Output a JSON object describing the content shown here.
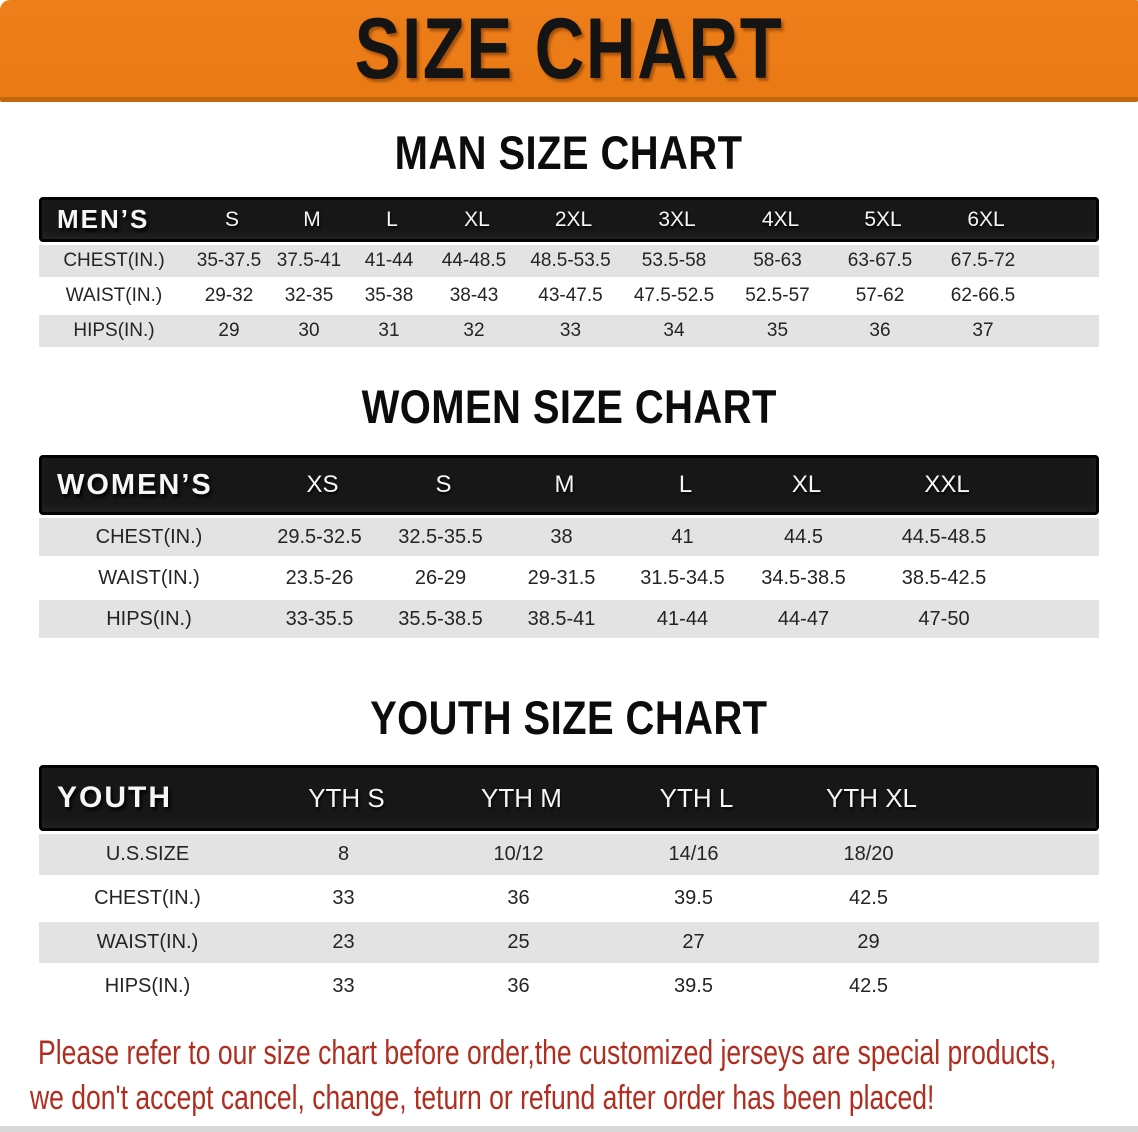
{
  "banner": {
    "title": "SIZE CHART"
  },
  "colors": {
    "banner_bg": "#ee7e1a",
    "banner_edge": "#c4660d",
    "header_bg": "#171717",
    "stripe_bg": "#e3e3e3",
    "note_red": "#b02e20"
  },
  "men": {
    "heading": "MAN SIZE CHART",
    "header_label": "MEN’S",
    "sizes": [
      "S",
      "M",
      "L",
      "XL",
      "2XL",
      "3XL",
      "4XL",
      "5XL",
      "6XL"
    ],
    "rows": [
      {
        "label": "CHEST(IN.)",
        "values": [
          "35-37.5",
          "37.5-41",
          "41-44",
          "44-48.5",
          "48.5-53.5",
          "53.5-58",
          "58-63",
          "63-67.5",
          "67.5-72"
        ]
      },
      {
        "label": "WAIST(IN.)",
        "values": [
          "29-32",
          "32-35",
          "35-38",
          "38-43",
          "43-47.5",
          "47.5-52.5",
          "52.5-57",
          "57-62",
          "62-66.5"
        ]
      },
      {
        "label": "HIPS(IN.)",
        "values": [
          "29",
          "30",
          "31",
          "32",
          "33",
          "34",
          "35",
          "36",
          "37"
        ]
      }
    ]
  },
  "women": {
    "heading": "WOMEN SIZE CHART",
    "header_label": "WOMEN’S",
    "sizes": [
      "XS",
      "S",
      "M",
      "L",
      "XL",
      "XXL"
    ],
    "rows": [
      {
        "label": "CHEST(IN.)",
        "values": [
          "29.5-32.5",
          "32.5-35.5",
          "38",
          "41",
          "44.5",
          "44.5-48.5"
        ]
      },
      {
        "label": "WAIST(IN.)",
        "values": [
          "23.5-26",
          "26-29",
          "29-31.5",
          "31.5-34.5",
          "34.5-38.5",
          "38.5-42.5"
        ]
      },
      {
        "label": "HIPS(IN.)",
        "values": [
          "33-35.5",
          "35.5-38.5",
          "38.5-41",
          "41-44",
          "44-47",
          "47-50"
        ]
      }
    ]
  },
  "youth": {
    "heading": "YOUTH SIZE CHART",
    "header_label": "YOUTH",
    "sizes": [
      "YTH S",
      "YTH M",
      "YTH L",
      "YTH XL"
    ],
    "rows": [
      {
        "label": "U.S.SIZE",
        "values": [
          "8",
          "10/12",
          "14/16",
          "18/20"
        ]
      },
      {
        "label": "CHEST(IN.)",
        "values": [
          "33",
          "36",
          "39.5",
          "42.5"
        ]
      },
      {
        "label": "WAIST(IN.)",
        "values": [
          "23",
          "25",
          "27",
          "29"
        ]
      },
      {
        "label": "HIPS(IN.)",
        "values": [
          "33",
          "36",
          "39.5",
          "42.5"
        ]
      }
    ]
  },
  "note": {
    "line1": "Please refer to our size chart before order,the customized jerseys are special products,",
    "line2": "we don't accept cancel, change, teturn or refund after order has been placed!"
  }
}
